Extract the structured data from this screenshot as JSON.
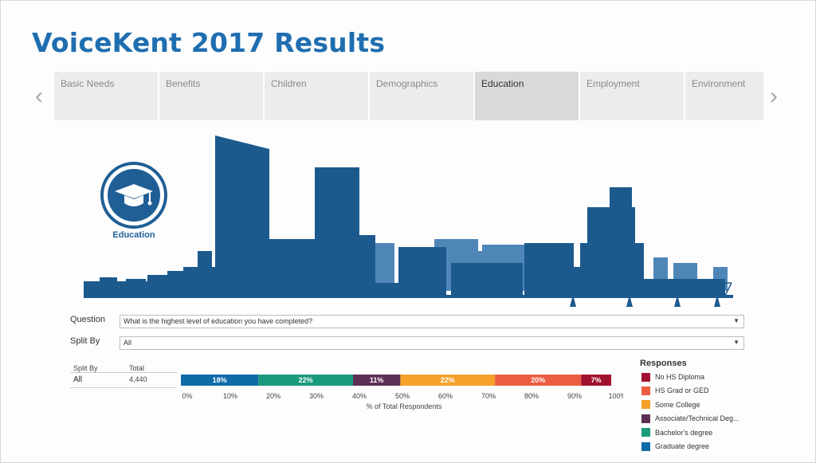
{
  "page_title": "VoiceKent 2017 Results",
  "tabs": [
    "Basic Needs",
    "Benefits",
    "Children",
    "Demographics",
    "Education",
    "Employment",
    "Environment"
  ],
  "active_tab": "Education",
  "nav": {
    "prev_glyph": "‹",
    "next_glyph": "›"
  },
  "category_icon": {
    "name": "graduation-cap-icon",
    "label": "Education"
  },
  "filters": {
    "question_label": "Question",
    "question_value": "What is the highest level of education you have completed?",
    "split_label": "Split By",
    "split_value": "All"
  },
  "table": {
    "col_split": "Split By",
    "col_total": "Total",
    "row_label": "All",
    "row_total": "4,440"
  },
  "colors": {
    "title": "#1f6eb0",
    "skyline": "#1c5a8e",
    "skyline_light": "#4f86b8"
  },
  "chart_data": {
    "type": "bar",
    "orientation": "horizontal-stacked",
    "categories": [
      "All"
    ],
    "series": [
      {
        "name": "Graduate degree",
        "values": [
          18
        ],
        "color": "#0f6ba8",
        "label": "18%"
      },
      {
        "name": "Bachelor's degree",
        "values": [
          22
        ],
        "color": "#1a9a7c",
        "label": "22%"
      },
      {
        "name": "Associate/Technical Deg...",
        "values": [
          11
        ],
        "color": "#5e2f55",
        "label": "11%"
      },
      {
        "name": "Some College",
        "values": [
          22
        ],
        "color": "#f5a12a",
        "label": "22%"
      },
      {
        "name": "HS Grad or GED",
        "values": [
          20
        ],
        "color": "#ec5c40",
        "label": "20%"
      },
      {
        "name": "No HS Diploma",
        "values": [
          7
        ],
        "color": "#a1102e",
        "label": "7%"
      }
    ],
    "xlabel": "% of Total Respondents",
    "xlim": [
      0,
      100
    ],
    "ticks": [
      "0%",
      "10%",
      "20%",
      "30%",
      "40%",
      "50%",
      "60%",
      "70%",
      "80%",
      "90%",
      "100%"
    ],
    "legend_title": "Responses",
    "legend_order": [
      "No HS Diploma",
      "HS Grad or GED",
      "Some College",
      "Associate/Technical Deg...",
      "Bachelor's degree",
      "Graduate degree"
    ]
  }
}
